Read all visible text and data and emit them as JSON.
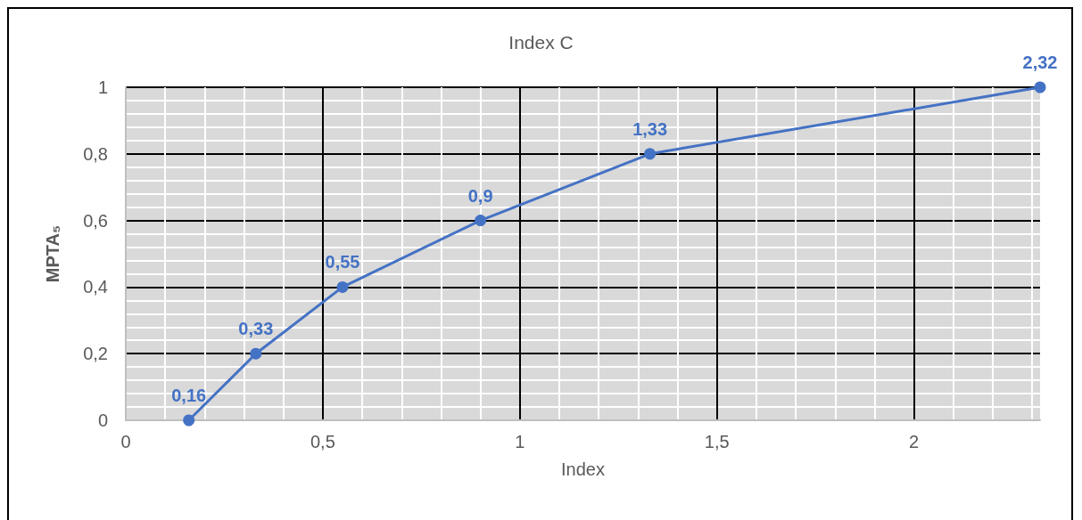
{
  "chart_data": {
    "type": "line",
    "title": "Index C",
    "xlabel": "Index",
    "ylabel": "MPTA₅",
    "x": [
      0.16,
      0.33,
      0.55,
      0.9,
      1.33,
      2.32
    ],
    "series": [
      {
        "color": "#4472c4",
        "values": [
          0,
          0.2,
          0.4,
          0.6,
          0.8,
          1
        ]
      }
    ],
    "annotations": [
      {
        "text": "0,16",
        "x": 0.16,
        "y": 0
      },
      {
        "text": "0,33",
        "x": 0.33,
        "y": 0.2
      },
      {
        "text": "0,55",
        "x": 0.55,
        "y": 0.4
      },
      {
        "text": "0,9",
        "x": 0.9,
        "y": 0.6
      },
      {
        "text": "1,33",
        "x": 1.33,
        "y": 0.8
      },
      {
        "text": "2,32",
        "x": 2.32,
        "y": 1
      }
    ],
    "xlim": [
      0,
      2.32
    ],
    "xticks": [
      0,
      {
        "value": 0.5,
        "label": "0,5"
      },
      1,
      {
        "value": 1.5,
        "label": "1,5"
      },
      2
    ],
    "ylim": [
      0,
      1
    ],
    "yticks": [
      0,
      {
        "value": 0.2,
        "label": "0,2"
      },
      {
        "value": 0.4,
        "label": "0,4"
      },
      {
        "value": 0.6,
        "label": "0,6"
      },
      {
        "value": 0.8,
        "label": "0,8"
      },
      1
    ],
    "grid": true,
    "marker": "circle",
    "line_style": "solid"
  }
}
